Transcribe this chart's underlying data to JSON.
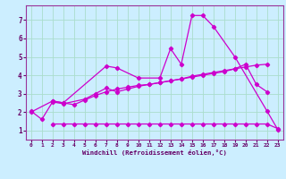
{
  "xlabel": "Windchill (Refroidissement éolien,°C)",
  "xlim": [
    -0.5,
    23.5
  ],
  "ylim": [
    0.5,
    7.8
  ],
  "xticks": [
    0,
    1,
    2,
    3,
    4,
    5,
    6,
    7,
    8,
    9,
    10,
    11,
    12,
    13,
    14,
    15,
    16,
    17,
    18,
    19,
    20,
    21,
    22,
    23
  ],
  "yticks": [
    1,
    2,
    3,
    4,
    5,
    6,
    7
  ],
  "background_color": "#cceeff",
  "grid_color": "#aaddcc",
  "line_color": "#cc00cc",
  "lines": [
    {
      "x": [
        0,
        2,
        3,
        4,
        5,
        6,
        7,
        8,
        9,
        10,
        11,
        12,
        13,
        14,
        15,
        16,
        17,
        18,
        19,
        20,
        21,
        22
      ],
      "y": [
        2.0,
        2.6,
        2.5,
        2.4,
        2.65,
        2.9,
        3.1,
        3.25,
        3.35,
        3.45,
        3.5,
        3.6,
        3.7,
        3.8,
        3.95,
        4.05,
        4.15,
        4.25,
        4.35,
        4.45,
        4.55,
        4.6
      ]
    },
    {
      "x": [
        2,
        3,
        4,
        5,
        6,
        7,
        8,
        9,
        10,
        11,
        12,
        13,
        14,
        15,
        16,
        17,
        18,
        19,
        20,
        21,
        22,
        23
      ],
      "y": [
        1.35,
        1.35,
        1.35,
        1.35,
        1.35,
        1.35,
        1.35,
        1.35,
        1.35,
        1.35,
        1.35,
        1.35,
        1.35,
        1.35,
        1.35,
        1.35,
        1.35,
        1.35,
        1.35,
        1.35,
        1.35,
        1.1
      ]
    },
    {
      "x": [
        0,
        1,
        2,
        3,
        5,
        6,
        7,
        8,
        9,
        10,
        11,
        12,
        13,
        14,
        15,
        16,
        17,
        18,
        19,
        20,
        21,
        22
      ],
      "y": [
        2.05,
        1.6,
        2.55,
        2.45,
        2.7,
        3.0,
        3.3,
        3.1,
        3.25,
        3.4,
        3.5,
        3.6,
        3.7,
        3.8,
        3.9,
        4.0,
        4.1,
        4.2,
        4.35,
        4.6,
        3.5,
        3.1
      ]
    },
    {
      "x": [
        2,
        3,
        7,
        8,
        10,
        12,
        13,
        14,
        15,
        16,
        17,
        19,
        22,
        23
      ],
      "y": [
        2.6,
        2.5,
        4.5,
        4.4,
        3.85,
        3.85,
        5.45,
        4.6,
        7.25,
        7.25,
        6.65,
        5.0,
        2.05,
        1.05
      ]
    }
  ]
}
